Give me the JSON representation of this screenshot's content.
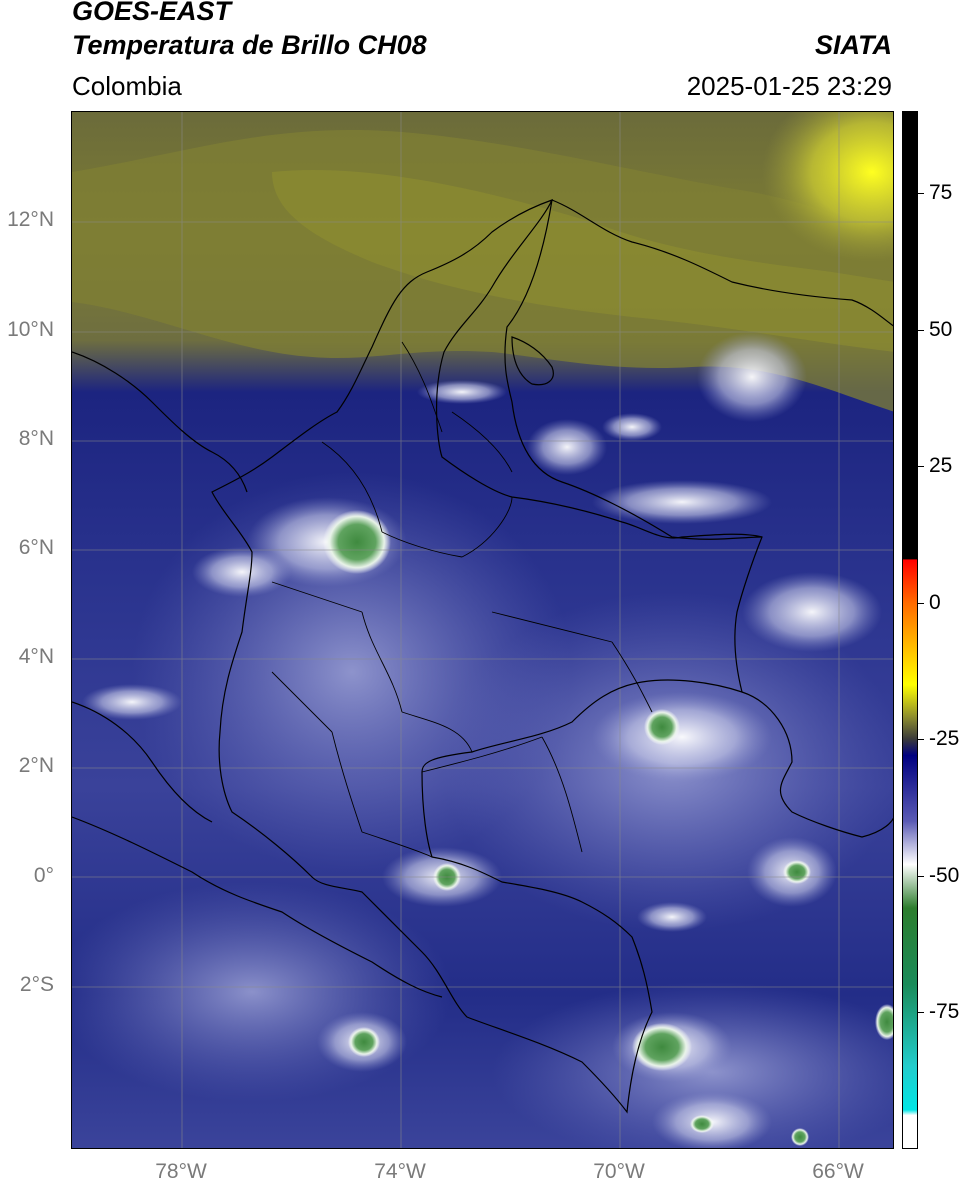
{
  "header": {
    "satellite": "GOES-EAST",
    "product": "Temperatura de Brillo CH08",
    "brand": "SIATA",
    "region": "Colombia",
    "datetime": "2025-01-25 23:29"
  },
  "map": {
    "lat_ticks": [
      "12°N",
      "10°N",
      "8°N",
      "6°N",
      "4°N",
      "2°N",
      "0°",
      "2°S"
    ],
    "lon_ticks": [
      "78°W",
      "74°W",
      "70°W",
      "66°W"
    ],
    "lon_range": [
      -80,
      -65
    ],
    "lat_range": [
      -5,
      14
    ]
  },
  "colorbar": {
    "ticks": [
      "75",
      "50",
      "25",
      "0",
      "-25",
      "-50",
      "-75"
    ],
    "tick_values": [
      75,
      50,
      25,
      0,
      -25,
      -50,
      -75
    ],
    "range": [
      -100,
      90
    ],
    "stops": [
      {
        "v": 90,
        "c": "#000000"
      },
      {
        "v": 8,
        "c": "#000000"
      },
      {
        "v": 7.9,
        "c": "#ff0000"
      },
      {
        "v": 0,
        "c": "#ff6a00"
      },
      {
        "v": -8,
        "c": "#ffbb00"
      },
      {
        "v": -15,
        "c": "#ffff00"
      },
      {
        "v": -21,
        "c": "#8c8c2e"
      },
      {
        "v": -25,
        "c": "#3a3a3a"
      },
      {
        "v": -28,
        "c": "#000080"
      },
      {
        "v": -40,
        "c": "#5a5ab4"
      },
      {
        "v": -48,
        "c": "#ffffff"
      },
      {
        "v": -56,
        "c": "#2d7d2d"
      },
      {
        "v": -70,
        "c": "#1a8c5a"
      },
      {
        "v": -85,
        "c": "#22cccc"
      },
      {
        "v": -93,
        "c": "#00e5e5"
      },
      {
        "v": -94,
        "c": "#ffffff"
      },
      {
        "v": -100,
        "c": "#ffffff"
      }
    ]
  }
}
